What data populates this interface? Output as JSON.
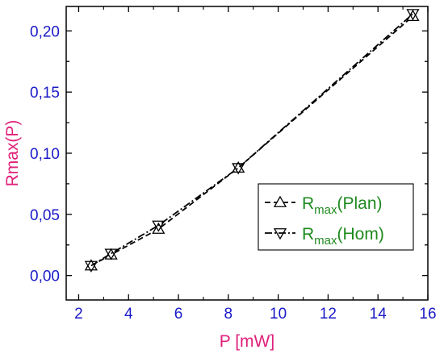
{
  "chart_data": {
    "type": "line",
    "xlabel": "P [mW]",
    "ylabel": "Rmax(P)",
    "xlim": [
      1.5,
      16
    ],
    "ylim": [
      -0.02,
      0.22
    ],
    "xticks": [
      2,
      4,
      6,
      8,
      10,
      12,
      14,
      16
    ],
    "xtick_labels": [
      "2",
      "4",
      "6",
      "8",
      "10",
      "12",
      "14",
      "16"
    ],
    "yticks": [
      0.0,
      0.05,
      0.1,
      0.15,
      0.2
    ],
    "ytick_labels": [
      "0,00",
      "0,05",
      "0,10",
      "0,15",
      "0,20"
    ],
    "grid": false,
    "legend_position": "bottom-right",
    "colors": {
      "axis": "#000000",
      "tick_label": "#1a1ac8",
      "axis_title": "#e0207a",
      "legend_text": "#1f8a1f"
    },
    "series": [
      {
        "name_main": "R",
        "name_sub": "max",
        "name_suffix": "(Plan)",
        "marker": "triangle-up",
        "linestyle": "dash",
        "x": [
          2.5,
          3.3,
          5.2,
          8.4,
          15.4
        ],
        "y": [
          0.008,
          0.017,
          0.038,
          0.088,
          0.212
        ]
      },
      {
        "name_main": "R",
        "name_sub": "max",
        "name_suffix": "(Hom)",
        "marker": "triangle-down",
        "linestyle": "dashdot",
        "x": [
          2.5,
          3.3,
          5.2,
          8.4,
          15.4
        ],
        "y": [
          0.008,
          0.018,
          0.041,
          0.088,
          0.214
        ]
      }
    ]
  }
}
